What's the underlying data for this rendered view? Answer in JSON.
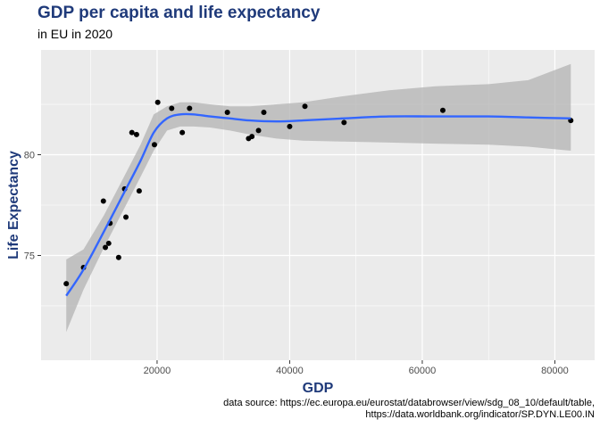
{
  "chart_data": {
    "type": "scatter",
    "title": "GDP per capita and life expectancy",
    "subtitle": "in EU in 2020",
    "xlabel": "GDP",
    "ylabel": "Life Expectancy",
    "xlim": [
      2500,
      86000
    ],
    "ylim": [
      69.8,
      85.2
    ],
    "xticks": [
      20000,
      40000,
      60000,
      80000
    ],
    "xtick_labels": [
      "20000",
      "40000",
      "60000",
      "80000"
    ],
    "yticks": [
      75,
      80
    ],
    "ytick_labels": [
      "75",
      "80"
    ],
    "grid": true,
    "points": [
      [
        6300,
        73.6
      ],
      [
        8900,
        74.4
      ],
      [
        11900,
        77.7
      ],
      [
        12200,
        75.4
      ],
      [
        12700,
        75.6
      ],
      [
        12900,
        76.6
      ],
      [
        14200,
        74.9
      ],
      [
        15100,
        78.3
      ],
      [
        15300,
        76.9
      ],
      [
        16200,
        81.1
      ],
      [
        16900,
        81.0
      ],
      [
        17300,
        78.2
      ],
      [
        19600,
        80.5
      ],
      [
        20100,
        82.6
      ],
      [
        22200,
        82.3
      ],
      [
        23800,
        81.1
      ],
      [
        24900,
        82.3
      ],
      [
        30600,
        82.1
      ],
      [
        33800,
        80.8
      ],
      [
        34300,
        80.9
      ],
      [
        35300,
        81.2
      ],
      [
        36100,
        82.1
      ],
      [
        40000,
        81.4
      ],
      [
        42300,
        82.4
      ],
      [
        48200,
        81.6
      ],
      [
        63100,
        82.2
      ],
      [
        82400,
        81.7
      ]
    ],
    "smooth": {
      "x": [
        6300,
        8900,
        12000,
        15000,
        17500,
        19500,
        21500,
        23500,
        25500,
        28000,
        31000,
        34000,
        38000,
        42000,
        48000,
        55000,
        62000,
        70000,
        76000,
        82400
      ],
      "y": [
        73.0,
        74.3,
        76.2,
        78.1,
        79.7,
        81.1,
        81.8,
        82.0,
        82.0,
        81.9,
        81.8,
        81.7,
        81.65,
        81.7,
        81.8,
        81.9,
        81.9,
        81.9,
        81.85,
        81.8
      ],
      "lower": [
        71.2,
        73.3,
        75.4,
        77.3,
        78.9,
        80.2,
        81.2,
        81.4,
        81.4,
        81.35,
        81.2,
        81.0,
        80.8,
        80.7,
        80.65,
        80.6,
        80.55,
        80.5,
        80.4,
        80.2
      ],
      "upper": [
        74.8,
        75.3,
        77.0,
        78.9,
        80.5,
        82.0,
        82.4,
        82.6,
        82.6,
        82.5,
        82.4,
        82.4,
        82.5,
        82.6,
        82.9,
        83.2,
        83.4,
        83.5,
        83.7,
        84.5
      ]
    },
    "colors": {
      "panel": "#ebebeb",
      "grid_major": "#ffffff",
      "line": "#3366ff",
      "ribbon": "#b3b3b3",
      "point": "#000000",
      "title": "#1f3a7a"
    }
  },
  "caption": {
    "line1": "data source: https://ec.europa.eu/eurostat/databrowser/view/sdg_08_10/default/table,",
    "line2": "https://data.worldbank.org/indicator/SP.DYN.LE00.IN"
  }
}
